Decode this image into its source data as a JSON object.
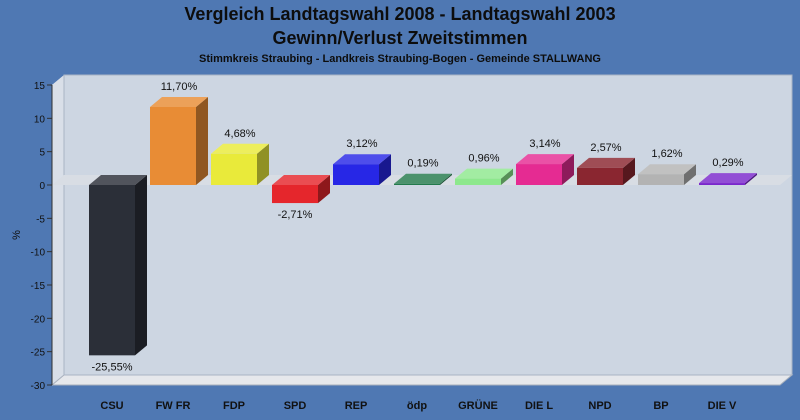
{
  "chart_data": {
    "type": "bar",
    "title": "Vergleich Landtagswahl 2008 - Landtagswahl 2003",
    "subtitle": "Gewinn/Verlust Zweitstimmen",
    "subtitle2": "Stimmkreis Straubing - Landkreis Straubing-Bogen - Gemeinde STALLWANG",
    "xlabel": "",
    "ylabel": "%",
    "ylim": [
      -30,
      15
    ],
    "yticks": [
      15,
      10,
      5,
      0,
      -5,
      -10,
      -15,
      -20,
      -25,
      -30
    ],
    "grid": false,
    "legend": "none",
    "categories": [
      "CSU",
      "FW FR",
      "FDP",
      "SPD",
      "REP",
      "ödp",
      "GRÜNE",
      "DIE L",
      "NPD",
      "BP",
      "DIE V"
    ],
    "values": [
      -25.55,
      11.7,
      4.68,
      -2.71,
      3.12,
      0.19,
      0.96,
      3.14,
      2.57,
      1.62,
      0.29
    ],
    "value_labels": [
      "-25,55%",
      "11,70%",
      "4,68%",
      "-2,71%",
      "3,12%",
      "0,19%",
      "0,96%",
      "3,14%",
      "2,57%",
      "1,62%",
      "0,29%"
    ],
    "colors": [
      "#2b2f38",
      "#e88c35",
      "#e9ea3a",
      "#e5262c",
      "#2727e6",
      "#237a4c",
      "#8de88d",
      "#e52b92",
      "#8a2630",
      "#b3b3b3",
      "#7a27cc"
    ]
  }
}
